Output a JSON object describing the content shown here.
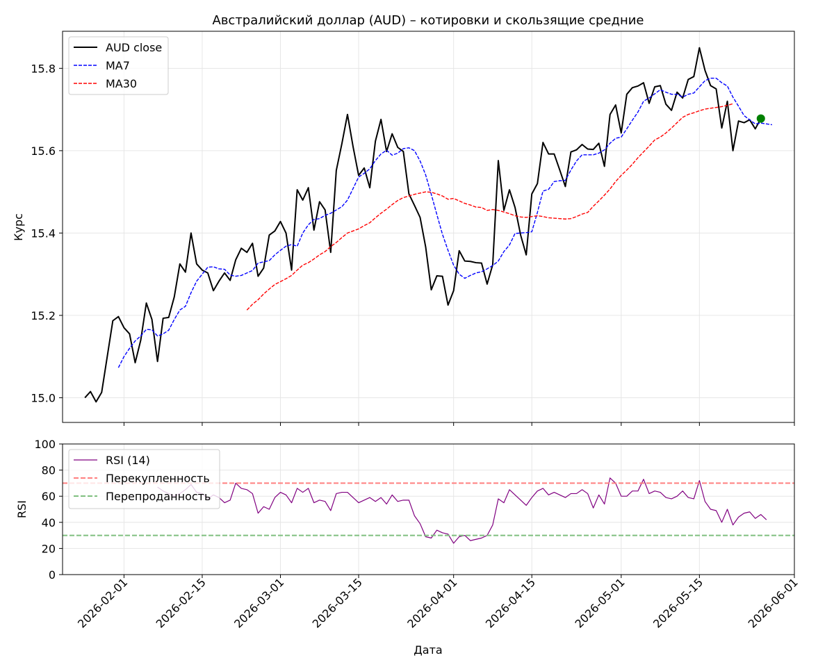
{
  "chart_data": [
    {
      "type": "line",
      "title": "Австралийский доллар (AUD) – котировки и скользящие средние",
      "xlabel": "",
      "ylabel": "Курс",
      "ylim": [
        14.94,
        15.89
      ],
      "x_range": [
        "2026-01-21",
        "2026-06-01"
      ],
      "grid": true,
      "legend_position": "top-left",
      "yticks": [
        "15.0",
        "15.2",
        "15.4",
        "15.6",
        "15.8"
      ],
      "yticks_values": [
        15.0,
        15.2,
        15.4,
        15.6,
        15.8
      ],
      "start_date": "2026-01-25",
      "last_point_marker": {
        "color": "#008000",
        "value": 15.678
      },
      "series": [
        {
          "name": "AUD close",
          "style": "solid",
          "color": "#000000",
          "offset": 0,
          "values": [
            15.0,
            15.015,
            14.99,
            15.013,
            15.1,
            15.187,
            15.197,
            15.17,
            15.155,
            15.085,
            15.14,
            15.23,
            15.19,
            15.088,
            15.193,
            15.195,
            15.245,
            15.325,
            15.305,
            15.4,
            15.325,
            15.31,
            15.303,
            15.26,
            15.283,
            15.303,
            15.285,
            15.335,
            15.363,
            15.353,
            15.375,
            15.295,
            15.315,
            15.395,
            15.405,
            15.428,
            15.4,
            15.31,
            15.505,
            15.48,
            15.51,
            15.407,
            15.476,
            15.456,
            15.353,
            15.552,
            15.617,
            15.688,
            15.61,
            15.54,
            15.558,
            15.51,
            15.623,
            15.676,
            15.598,
            15.641,
            15.608,
            15.598,
            15.495,
            15.467,
            15.438,
            15.366,
            15.262,
            15.296,
            15.295,
            15.225,
            15.26,
            15.357,
            15.332,
            15.331,
            15.328,
            15.327,
            15.276,
            15.323,
            15.576,
            15.455,
            15.505,
            15.462,
            15.395,
            15.347,
            15.495,
            15.52,
            15.62,
            15.592,
            15.592,
            15.553,
            15.513,
            15.597,
            15.602,
            15.615,
            15.604,
            15.603,
            15.618,
            15.562,
            15.688,
            15.711,
            15.643,
            15.737,
            15.753,
            15.757,
            15.765,
            15.715,
            15.755,
            15.758,
            15.713,
            15.698,
            15.742,
            15.728,
            15.773,
            15.78,
            15.85,
            15.795,
            15.758,
            15.75,
            15.655,
            15.72,
            15.6,
            15.672,
            15.668,
            15.675,
            15.653,
            15.678
          ]
        },
        {
          "name": "MA7",
          "style": "dashed",
          "color": "#0000ff",
          "offset": 6,
          "values": [
            15.073,
            15.1,
            15.12,
            15.138,
            15.15,
            15.166,
            15.165,
            15.15,
            15.155,
            15.164,
            15.19,
            15.213,
            15.222,
            15.255,
            15.283,
            15.3,
            15.317,
            15.318,
            15.313,
            15.312,
            15.298,
            15.295,
            15.297,
            15.303,
            15.309,
            15.327,
            15.33,
            15.333,
            15.347,
            15.358,
            15.368,
            15.372,
            15.368,
            15.4,
            15.42,
            15.433,
            15.435,
            15.443,
            15.448,
            15.456,
            15.464,
            15.48,
            15.508,
            15.536,
            15.545,
            15.556,
            15.576,
            15.592,
            15.601,
            15.589,
            15.594,
            15.605,
            15.607,
            15.6,
            15.575,
            15.541,
            15.494,
            15.445,
            15.397,
            15.358,
            15.322,
            15.3,
            15.29,
            15.297,
            15.303,
            15.306,
            15.313,
            15.321,
            15.332,
            15.355,
            15.371,
            15.399,
            15.4,
            15.401,
            15.403,
            15.45,
            15.502,
            15.506,
            15.525,
            15.527,
            15.528,
            15.553,
            15.575,
            15.59,
            15.59,
            15.59,
            15.594,
            15.602,
            15.618,
            15.63,
            15.633,
            15.653,
            15.674,
            15.694,
            15.72,
            15.728,
            15.738,
            15.748,
            15.742,
            15.737,
            15.737,
            15.73,
            15.737,
            15.74,
            15.755,
            15.77,
            15.776,
            15.776,
            15.765,
            15.757,
            15.73,
            15.708,
            15.685,
            15.675,
            15.665,
            15.667,
            15.665,
            15.663
          ]
        },
        {
          "name": "MA30",
          "style": "dashed",
          "color": "#ff0000",
          "offset": 29,
          "values": [
            15.213,
            15.227,
            15.238,
            15.252,
            15.264,
            15.275,
            15.282,
            15.289,
            15.297,
            15.31,
            15.322,
            15.328,
            15.337,
            15.347,
            15.355,
            15.367,
            15.377,
            15.389,
            15.4,
            15.405,
            15.41,
            15.418,
            15.425,
            15.437,
            15.448,
            15.458,
            15.469,
            15.479,
            15.486,
            15.49,
            15.494,
            15.497,
            15.5,
            15.499,
            15.495,
            15.49,
            15.482,
            15.484,
            15.478,
            15.472,
            15.468,
            15.463,
            15.462,
            15.455,
            15.457,
            15.455,
            15.451,
            15.447,
            15.442,
            15.439,
            15.438,
            15.44,
            15.442,
            15.44,
            15.437,
            15.436,
            15.435,
            15.434,
            15.435,
            15.44,
            15.446,
            15.45,
            15.465,
            15.478,
            15.492,
            15.507,
            15.525,
            15.54,
            15.553,
            15.567,
            15.583,
            15.597,
            15.611,
            15.626,
            15.633,
            15.643,
            15.655,
            15.668,
            15.681,
            15.688,
            15.692,
            15.697,
            15.701,
            15.703,
            15.705,
            15.707,
            15.71,
            15.714
          ]
        }
      ]
    },
    {
      "type": "line",
      "title": "",
      "xlabel": "Дата",
      "ylabel": "RSI",
      "ylim": [
        0,
        100
      ],
      "x_range": [
        "2026-01-21",
        "2026-06-01"
      ],
      "grid": true,
      "legend_position": "top-left",
      "yticks": [
        "0",
        "20",
        "40",
        "60",
        "80",
        "100"
      ],
      "yticks_values": [
        0,
        20,
        40,
        60,
        80,
        100
      ],
      "xticks": [
        "2026-02-01",
        "2026-02-15",
        "2026-03-01",
        "2026-03-15",
        "2026-04-01",
        "2026-04-15",
        "2026-05-01",
        "2026-05-15",
        "2026-06-01"
      ],
      "series": [
        {
          "name": "RSI (14)",
          "style": "solid",
          "color": "#800080",
          "offset": 13,
          "values": [
            67,
            64,
            62,
            60,
            62,
            65,
            69,
            63,
            62,
            58,
            61,
            59,
            55,
            57,
            70,
            66,
            65,
            62,
            47,
            52,
            50,
            59,
            63,
            61,
            55,
            66,
            63,
            66,
            55,
            57,
            56,
            49,
            62,
            63,
            63,
            59,
            55,
            57,
            59,
            56,
            59,
            54,
            61,
            56,
            57,
            57,
            45,
            39,
            29,
            28,
            34,
            32,
            31,
            24,
            29,
            30,
            26,
            27,
            28,
            30,
            38,
            58,
            55,
            65,
            61,
            57,
            53,
            59,
            64,
            66,
            61,
            63,
            61,
            59,
            62,
            62,
            65,
            62,
            51,
            61,
            54,
            74,
            70,
            60,
            60,
            64,
            64,
            73,
            62,
            64,
            63,
            59,
            58,
            60,
            64,
            59,
            58,
            72,
            56,
            50,
            49,
            40,
            50,
            38,
            44,
            47,
            48,
            43,
            46,
            42
          ]
        },
        {
          "name": "Перекупленность",
          "style": "dashed",
          "color": "#ff7f7f",
          "constant": 70
        },
        {
          "name": "Перепроданность",
          "style": "dashed",
          "color": "#7fbf7f",
          "constant": 30
        }
      ]
    }
  ]
}
